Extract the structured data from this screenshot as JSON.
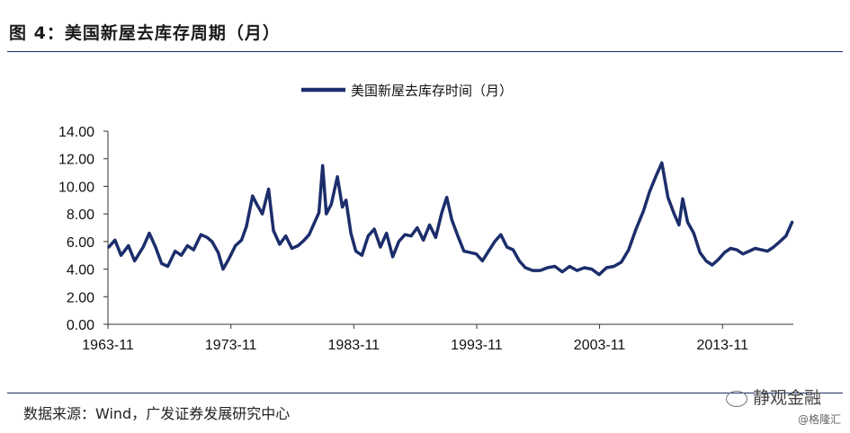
{
  "figure": {
    "title": "图 4：美国新屋去库存周期（月）",
    "source": "数据来源：Wind，广发证券发展研究中心",
    "watermark_primary": "静观金融",
    "watermark_secondary": "@格隆汇"
  },
  "colors": {
    "line": "#1c2d6b",
    "rule": "#1c2d6b"
  },
  "chart_data": {
    "type": "line",
    "title": "",
    "xlabel": "",
    "ylabel": "",
    "legend_placement": "top-center",
    "grid": false,
    "ylim": [
      0,
      14
    ],
    "xlim": [
      1963.83,
      2019.6
    ],
    "y_ticks": [
      "0.00",
      "2.00",
      "4.00",
      "6.00",
      "8.00",
      "10.00",
      "12.00",
      "14.00"
    ],
    "x_ticks": [
      "1963-11",
      "1973-11",
      "1983-11",
      "1993-11",
      "2003-11",
      "2013-11"
    ],
    "series": [
      {
        "name": "美国新屋去库存时间（月）",
        "points": [
          [
            1963.9,
            5.6
          ],
          [
            1964.4,
            6.1
          ],
          [
            1964.9,
            5.0
          ],
          [
            1965.5,
            5.7
          ],
          [
            1966.0,
            4.6
          ],
          [
            1966.7,
            5.6
          ],
          [
            1967.2,
            6.6
          ],
          [
            1967.7,
            5.6
          ],
          [
            1968.2,
            4.4
          ],
          [
            1968.7,
            4.2
          ],
          [
            1969.3,
            5.3
          ],
          [
            1969.8,
            5.0
          ],
          [
            1970.3,
            5.7
          ],
          [
            1970.8,
            5.4
          ],
          [
            1971.4,
            6.5
          ],
          [
            1971.9,
            6.3
          ],
          [
            1972.3,
            6.0
          ],
          [
            1972.8,
            5.2
          ],
          [
            1973.2,
            4.0
          ],
          [
            1973.7,
            4.8
          ],
          [
            1974.2,
            5.7
          ],
          [
            1974.7,
            6.1
          ],
          [
            1975.1,
            7.1
          ],
          [
            1975.6,
            9.3
          ],
          [
            1976.0,
            8.6
          ],
          [
            1976.4,
            8.0
          ],
          [
            1976.9,
            9.8
          ],
          [
            1977.3,
            6.8
          ],
          [
            1977.8,
            5.8
          ],
          [
            1978.3,
            6.4
          ],
          [
            1978.8,
            5.5
          ],
          [
            1979.3,
            5.7
          ],
          [
            1979.8,
            6.1
          ],
          [
            1980.2,
            6.5
          ],
          [
            1980.6,
            7.3
          ],
          [
            1981.0,
            8.1
          ],
          [
            1981.3,
            11.5
          ],
          [
            1981.6,
            8.0
          ],
          [
            1982.0,
            8.7
          ],
          [
            1982.5,
            10.7
          ],
          [
            1982.9,
            8.5
          ],
          [
            1983.2,
            9.0
          ],
          [
            1983.6,
            6.6
          ],
          [
            1984.0,
            5.3
          ],
          [
            1984.5,
            5.0
          ],
          [
            1985.0,
            6.4
          ],
          [
            1985.5,
            6.9
          ],
          [
            1986.0,
            5.6
          ],
          [
            1986.5,
            6.6
          ],
          [
            1987.0,
            4.9
          ],
          [
            1987.5,
            6.0
          ],
          [
            1988.0,
            6.5
          ],
          [
            1988.5,
            6.4
          ],
          [
            1989.0,
            7.0
          ],
          [
            1989.5,
            6.1
          ],
          [
            1990.0,
            7.2
          ],
          [
            1990.5,
            6.3
          ],
          [
            1991.0,
            8.1
          ],
          [
            1991.4,
            9.2
          ],
          [
            1991.8,
            7.6
          ],
          [
            1992.3,
            6.4
          ],
          [
            1992.8,
            5.3
          ],
          [
            1993.3,
            5.2
          ],
          [
            1993.8,
            5.1
          ],
          [
            1994.3,
            4.6
          ],
          [
            1994.8,
            5.3
          ],
          [
            1995.3,
            6.0
          ],
          [
            1995.8,
            6.5
          ],
          [
            1996.3,
            5.6
          ],
          [
            1996.8,
            5.4
          ],
          [
            1997.3,
            4.6
          ],
          [
            1997.8,
            4.1
          ],
          [
            1998.4,
            3.9
          ],
          [
            1999.0,
            3.9
          ],
          [
            1999.6,
            4.1
          ],
          [
            2000.2,
            4.2
          ],
          [
            2000.8,
            3.8
          ],
          [
            2001.4,
            4.2
          ],
          [
            2002.0,
            3.9
          ],
          [
            2002.6,
            4.1
          ],
          [
            2003.2,
            4.0
          ],
          [
            2003.8,
            3.6
          ],
          [
            2004.4,
            4.1
          ],
          [
            2005.0,
            4.2
          ],
          [
            2005.6,
            4.5
          ],
          [
            2006.2,
            5.4
          ],
          [
            2006.8,
            6.9
          ],
          [
            2007.4,
            8.2
          ],
          [
            2007.9,
            9.6
          ],
          [
            2008.4,
            10.7
          ],
          [
            2008.9,
            11.7
          ],
          [
            2009.4,
            9.2
          ],
          [
            2009.9,
            8.0
          ],
          [
            2010.3,
            7.2
          ],
          [
            2010.6,
            9.1
          ],
          [
            2011.0,
            7.4
          ],
          [
            2011.5,
            6.6
          ],
          [
            2012.0,
            5.2
          ],
          [
            2012.5,
            4.6
          ],
          [
            2013.0,
            4.3
          ],
          [
            2013.5,
            4.7
          ],
          [
            2014.0,
            5.2
          ],
          [
            2014.5,
            5.5
          ],
          [
            2015.0,
            5.4
          ],
          [
            2015.5,
            5.1
          ],
          [
            2016.0,
            5.3
          ],
          [
            2016.5,
            5.5
          ],
          [
            2017.0,
            5.4
          ],
          [
            2017.5,
            5.3
          ],
          [
            2018.0,
            5.6
          ],
          [
            2018.5,
            6.0
          ],
          [
            2019.0,
            6.4
          ],
          [
            2019.5,
            7.4
          ]
        ]
      }
    ]
  }
}
